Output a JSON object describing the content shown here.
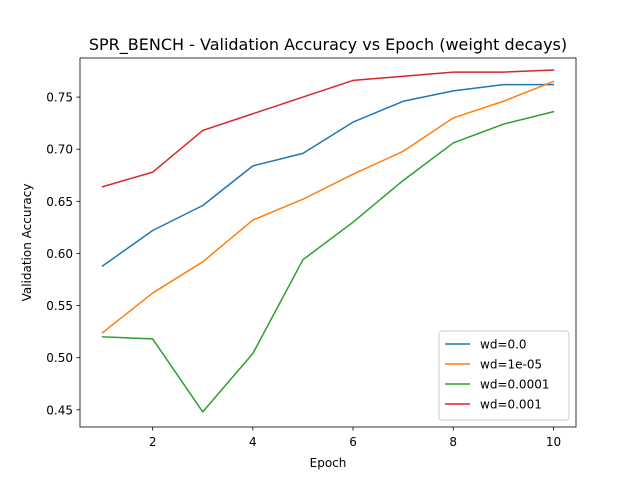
{
  "chart_data": {
    "type": "line",
    "title": "SPR_BENCH - Validation Accuracy vs Epoch (weight decays)",
    "xlabel": "Epoch",
    "ylabel": "Validation Accuracy",
    "xlim": [
      0.55,
      10.45
    ],
    "ylim": [
      0.4335,
      0.7875
    ],
    "xticks": [
      2,
      4,
      6,
      8,
      10
    ],
    "yticks": [
      0.45,
      0.5,
      0.55,
      0.6,
      0.65,
      0.7,
      0.75
    ],
    "ytick_labels": [
      "0.45",
      "0.50",
      "0.55",
      "0.60",
      "0.65",
      "0.70",
      "0.75"
    ],
    "grid": false,
    "legend_position": "lower-right",
    "x": [
      1,
      2,
      3,
      4,
      5,
      6,
      7,
      8,
      9,
      10
    ],
    "series": [
      {
        "name": "wd=0.0",
        "color": "#1f77b4",
        "values": [
          0.588,
          0.622,
          0.646,
          0.684,
          0.696,
          0.726,
          0.746,
          0.756,
          0.762,
          0.762
        ]
      },
      {
        "name": "wd=1e-05",
        "color": "#ff7f0e",
        "values": [
          0.524,
          0.562,
          0.592,
          0.632,
          0.652,
          0.676,
          0.698,
          0.73,
          0.746,
          0.765
        ]
      },
      {
        "name": "wd=0.0001",
        "color": "#2ca02c",
        "values": [
          0.52,
          0.518,
          0.448,
          0.504,
          0.594,
          0.63,
          0.67,
          0.706,
          0.724,
          0.736
        ]
      },
      {
        "name": "wd=0.001",
        "color": "#d62728",
        "values": [
          0.664,
          0.678,
          0.718,
          0.734,
          0.75,
          0.766,
          0.77,
          0.774,
          0.774,
          0.776
        ]
      }
    ]
  }
}
